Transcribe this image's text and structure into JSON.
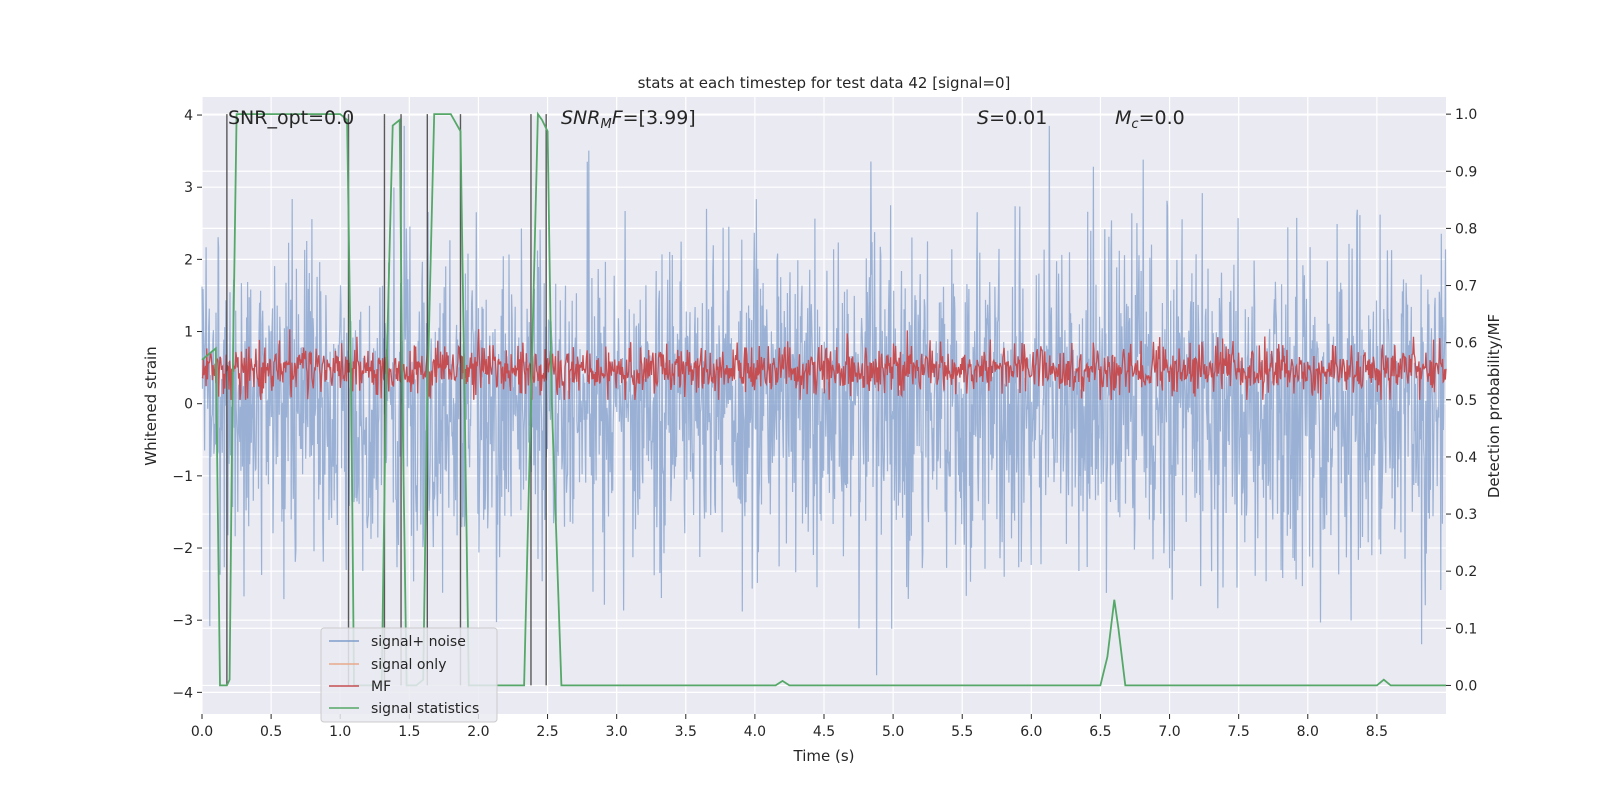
{
  "chart_data": {
    "type": "line",
    "title": "stats at each timestep for test data 42 [signal=0]",
    "xlabel": "Time (s)",
    "ylabel_left": "Whitened strain",
    "ylabel_right": "Detection probability/MF",
    "xlim": [
      0.0,
      9.0
    ],
    "ylim_left": [
      -4.3,
      4.25
    ],
    "ylim_right": [
      -0.05,
      1.03
    ],
    "x_ticks": [
      "0.0",
      "0.5",
      "1.0",
      "1.5",
      "2.0",
      "2.5",
      "3.0",
      "3.5",
      "4.0",
      "4.5",
      "5.0",
      "5.5",
      "6.0",
      "6.5",
      "7.0",
      "7.5",
      "8.0",
      "8.5"
    ],
    "y_left_ticks": [
      "4",
      "3",
      "2",
      "1",
      "0",
      "−1",
      "−2",
      "−3",
      "−4"
    ],
    "y_right_ticks": [
      "1.0",
      "0.9",
      "0.8",
      "0.7",
      "0.6",
      "0.5",
      "0.4",
      "0.3",
      "0.2",
      "0.1",
      "0.0"
    ],
    "grid": true,
    "annotations": {
      "snr_opt": "SNR_opt=0.0",
      "snr_mf_main": "SNR",
      "snr_mf_sub": "M",
      "snr_mf_rest": "F=[3.99]",
      "s_main": "S",
      "s_rest": "=0.01",
      "mc_main": "M",
      "mc_sub": "c",
      "mc_rest": "=0.0"
    },
    "legend": {
      "position": "lower-left",
      "entries": [
        {
          "label": "signal+ noise",
          "color": "#7f9dcb"
        },
        {
          "label": "signal only",
          "color": "#e8a98c"
        },
        {
          "label": "MF",
          "color": "#c44e52"
        },
        {
          "label": "signal statistics",
          "color": "#55a868"
        }
      ]
    },
    "series": [
      {
        "name": "signal+ noise",
        "axis": "left",
        "color": "#7f9dcb",
        "description": "whitened noisy strain, approx. range -4 to 3.9"
      },
      {
        "name": "signal only",
        "axis": "left",
        "color": "#e8a98c",
        "values": "zero signal"
      },
      {
        "name": "MF",
        "axis": "right",
        "color": "#c44e52",
        "description": "matched-filter output fluctuating between approx. 0.50 and 0.63"
      },
      {
        "name": "signal statistics",
        "axis": "right",
        "color": "#55a868",
        "x": [
          0.0,
          0.05,
          0.1,
          0.13,
          0.18,
          0.2,
          0.22,
          0.25,
          0.3,
          0.5,
          0.7,
          0.9,
          1.0,
          1.05,
          1.08,
          1.1,
          1.25,
          1.3,
          1.33,
          1.38,
          1.43,
          1.45,
          1.48,
          1.55,
          1.6,
          1.63,
          1.68,
          1.72,
          1.8,
          1.87,
          1.9,
          1.93,
          2.0,
          2.2,
          2.33,
          2.38,
          2.43,
          2.46,
          2.5,
          2.53,
          2.6,
          3.0,
          3.5,
          4.0,
          4.15,
          4.2,
          4.25,
          4.5,
          5.0,
          5.5,
          6.0,
          6.5,
          6.55,
          6.6,
          6.63,
          6.68,
          6.72,
          7.0,
          7.5,
          8.0,
          8.5,
          8.55,
          8.6,
          8.7,
          9.0
        ],
        "y": [
          0.57,
          0.58,
          0.59,
          0.0,
          0.0,
          0.01,
          0.5,
          1.0,
          1.0,
          1.0,
          1.0,
          1.0,
          1.0,
          0.99,
          0.5,
          0.0,
          0.0,
          0.0,
          0.5,
          0.98,
          0.99,
          0.5,
          0.0,
          0.0,
          0.01,
          0.5,
          1.0,
          1.0,
          1.0,
          0.97,
          0.5,
          0.0,
          0.0,
          0.0,
          0.0,
          0.5,
          1.0,
          0.99,
          0.97,
          0.5,
          0.0,
          0.0,
          0.0,
          0.0,
          0.0,
          0.008,
          0.0,
          0.0,
          0.0,
          0.0,
          0.0,
          0.0,
          0.05,
          0.15,
          0.1,
          0.0,
          0.0,
          0.0,
          0.0,
          0.0,
          0.0,
          0.01,
          0.0,
          0.0,
          0.0
        ]
      }
    ],
    "vertical_markers_x": [
      0.18,
      1.06,
      1.32,
      1.44,
      1.63,
      1.87,
      2.38,
      2.49
    ]
  }
}
